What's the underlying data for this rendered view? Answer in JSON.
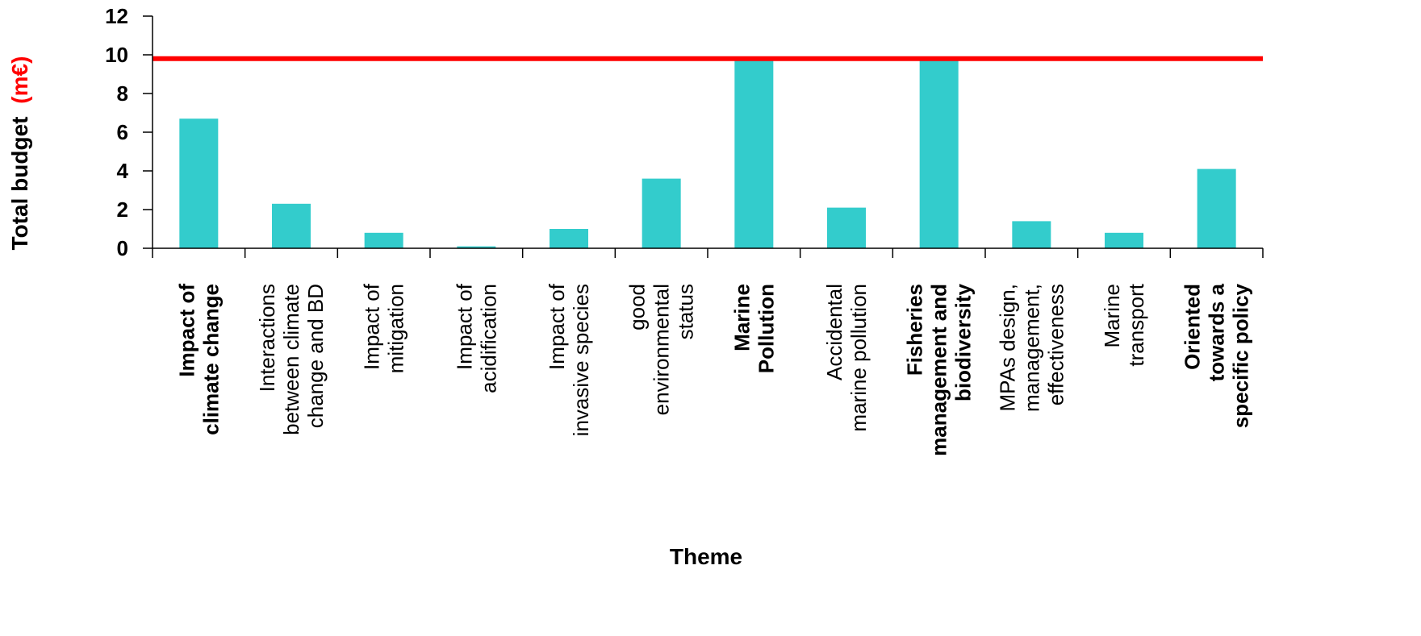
{
  "chart_data": {
    "type": "bar",
    "xlabel": "Theme",
    "ylabel": "Total budget",
    "ylabel_unit": "(m€)",
    "ylim": [
      0,
      12
    ],
    "yticks": [
      "0",
      "2",
      "4",
      "6",
      "8",
      "10",
      "12"
    ],
    "categories": [
      [
        "Impact of",
        "climate change"
      ],
      [
        "Interactions",
        "between climate",
        "change and BD"
      ],
      [
        "Impact of",
        "mitigation"
      ],
      [
        "Impact of",
        "acidification"
      ],
      [
        "Impact of",
        "invasive species"
      ],
      [
        "good",
        "environmental",
        "status"
      ],
      [
        "Marine",
        "Pollution"
      ],
      [
        "Accidental",
        "marine pollution"
      ],
      [
        "Fisheries",
        "management and",
        "biodiversity"
      ],
      [
        "MPAs design,",
        "management,",
        "effectiveness"
      ],
      [
        "Marine",
        "transport"
      ],
      [
        "Oriented",
        "towards a",
        "specific policy"
      ]
    ],
    "category_styles": [
      "red-bold",
      "normal",
      "normal",
      "normal",
      "normal",
      "normal",
      "red-bold",
      "normal",
      "red-bold",
      "normal",
      "normal",
      "bold"
    ],
    "values": [
      6.7,
      2.3,
      0.8,
      0.1,
      1.0,
      3.6,
      9.8,
      2.1,
      9.8,
      1.4,
      0.8,
      4.1
    ],
    "reference_line": {
      "value": 9.8,
      "color": "#ff0000"
    },
    "colors": {
      "bar": "#33cccc",
      "highlight": "#ff0000",
      "axis": "#000000"
    },
    "grid": false,
    "legend": "none"
  }
}
